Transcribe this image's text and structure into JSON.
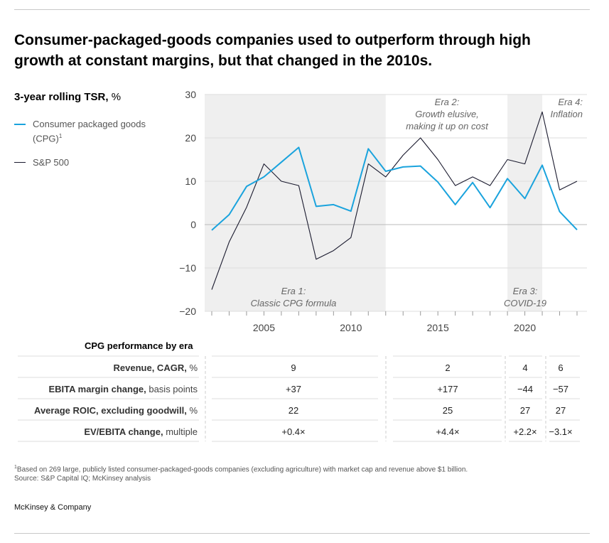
{
  "title": "Consumer-packaged-goods companies used to outperform through high growth at constant margins, but that changed in the 2010s.",
  "ylabel": {
    "bold": "3-year rolling TSR,",
    "unit": " %"
  },
  "legend": {
    "cpg": {
      "label": "Consumer packaged goods (CPG)",
      "sup": "1",
      "color": "#1aa3dd"
    },
    "sp500": {
      "label": "S&P 500",
      "color": "#1a1a2e"
    }
  },
  "chart_data": {
    "type": "line",
    "ylim": [
      -20,
      30
    ],
    "yticks": [
      30,
      20,
      10,
      0,
      -10,
      -20
    ],
    "ytick_labels": [
      "30",
      "20",
      "10",
      "0",
      "−10",
      "−20"
    ],
    "xlim": [
      2002,
      2023
    ],
    "xticks": [
      2005,
      2010,
      2015,
      2020
    ],
    "xtick_labels": [
      "2005",
      "2010",
      "2015",
      "2020"
    ],
    "x": [
      2002,
      2003,
      2004,
      2005,
      2006,
      2007,
      2008,
      2009,
      2010,
      2011,
      2012,
      2013,
      2014,
      2015,
      2016,
      2017,
      2018,
      2019,
      2020,
      2021,
      2022,
      2023
    ],
    "series": [
      {
        "name": "Consumer packaged goods (CPG)",
        "color": "#1aa3dd",
        "values": [
          -1.3,
          2.3,
          8.8,
          11,
          14.4,
          17.8,
          4.2,
          4.6,
          3.1,
          17.5,
          12.3,
          13.3,
          13.5,
          9.8,
          4.6,
          9.7,
          3.9,
          10.6,
          6,
          13.7,
          3,
          -1.2
        ]
      },
      {
        "name": "S&P 500",
        "color": "#1a1a2e",
        "values": [
          -15,
          -4,
          4,
          14,
          10,
          9,
          -8,
          -6,
          -3,
          14,
          11,
          16,
          20,
          15,
          9,
          11,
          9,
          15,
          14,
          26,
          8,
          10
        ]
      }
    ],
    "shaded_eras": [
      {
        "from": 2002,
        "to": 2012
      },
      {
        "from": 2019,
        "to": 2021
      }
    ],
    "annotations": {
      "era1": {
        "line1": "Era 1:",
        "line2": "Classic CPG formula"
      },
      "era2": {
        "line1": "Era 2:",
        "line2": "Growth elusive,",
        "line3": "making it up on cost"
      },
      "era3": {
        "line1": "Era 3:",
        "line2": "COVID-19"
      },
      "era4": {
        "line1": "Era 4:",
        "line2": "Inflation"
      }
    }
  },
  "table": {
    "title": "CPG performance by era",
    "rows": [
      {
        "bold": "Revenue, CAGR,",
        "rest": " %",
        "values": [
          "9",
          "2",
          "4",
          "6"
        ]
      },
      {
        "bold": "EBITA margin change,",
        "rest": " basis points",
        "values": [
          "+37",
          "+177",
          "−44",
          "−57"
        ]
      },
      {
        "bold": "Average ROIC, excluding goodwill,",
        "rest": " %",
        "values": [
          "22",
          "25",
          "27",
          "27"
        ]
      },
      {
        "bold": "EV/EBITA change,",
        "rest": " multiple",
        "values": [
          "+0.4×",
          "+4.4×",
          "+2.2×",
          "−3.1×"
        ]
      }
    ]
  },
  "footnote": {
    "sup": "1",
    "line1": "Based on 269 large, publicly listed consumer-packaged-goods companies (excluding agriculture) with market cap and revenue above $1 billion.",
    "line2": "Source: S&P Capital IQ; McKinsey analysis"
  },
  "brand": "McKinsey & Company"
}
